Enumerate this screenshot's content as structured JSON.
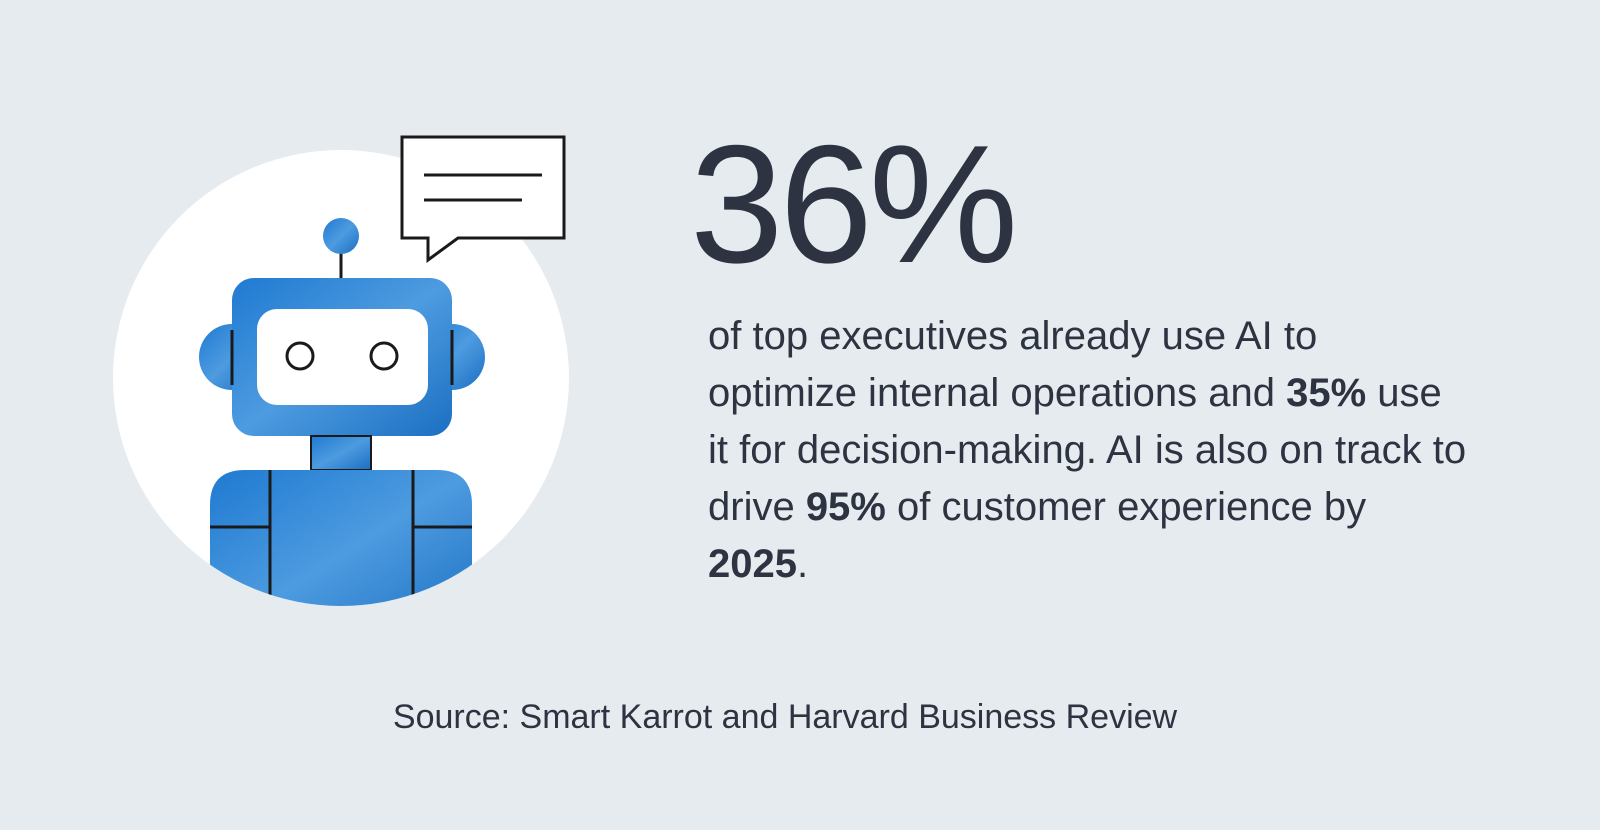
{
  "headline": "36%",
  "body": [
    {
      "text": "of top executives already use AI to optimize internal operations and ",
      "bold": false
    },
    {
      "text": "35%",
      "bold": true
    },
    {
      "text": " use it for decision-making. AI is also on track to drive ",
      "bold": false
    },
    {
      "text": "95%",
      "bold": true
    },
    {
      "text": " of customer experience by ",
      "bold": false
    },
    {
      "text": "2025",
      "bold": true
    },
    {
      "text": ".",
      "bold": false
    }
  ],
  "source": "Source: Smart Karrot and Harvard Business Review"
}
